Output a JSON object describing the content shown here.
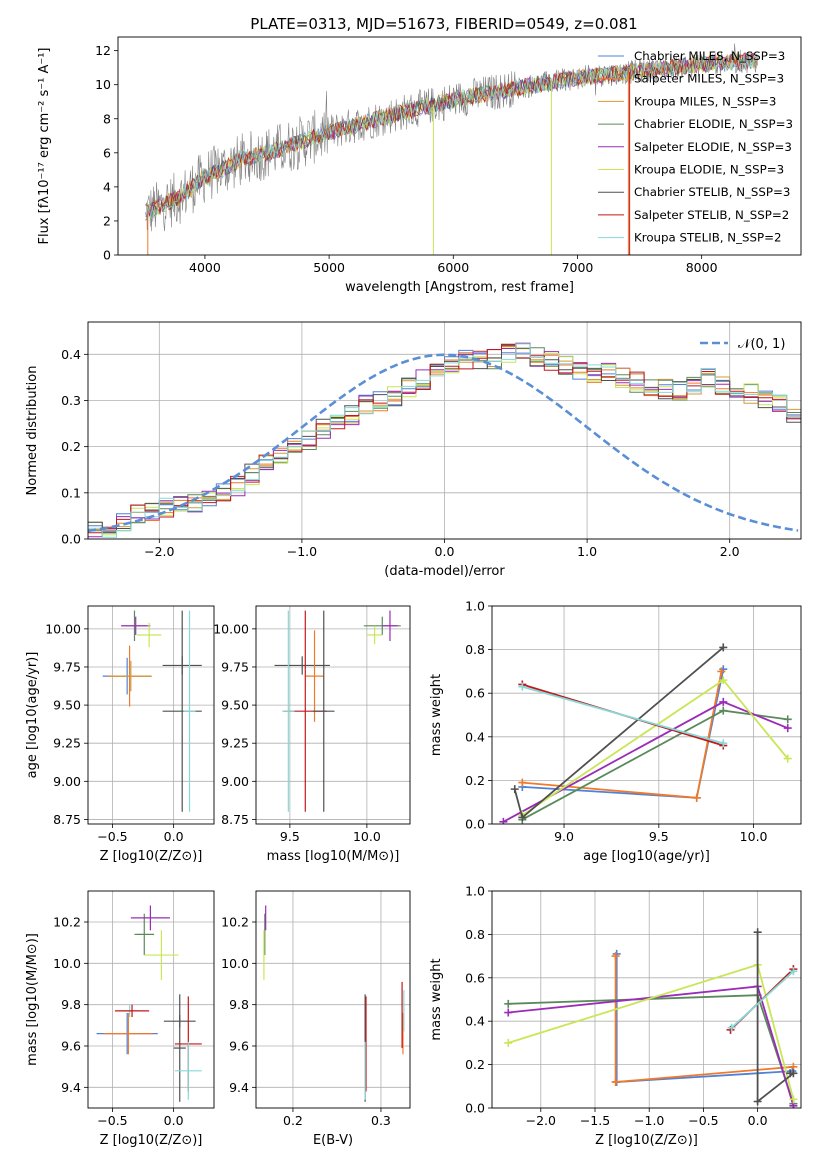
{
  "figure_title": "PLATE=0313, MJD=51673, FIBERID=0549, z=0.081",
  "colors": {
    "chabrier_miles": "#4f81d9",
    "salpeter_miles": "#f07a2a",
    "kroupa_miles": "#d39a3a",
    "chabrier_elodie": "#5a8a5a",
    "salpeter_elodie": "#9a2cb8",
    "kroupa_elodie": "#c8e656",
    "chabrier_stelib": "#505050",
    "salpeter_stelib": "#c2181a",
    "kroupa_stelib": "#86d9d9",
    "data": "#808080",
    "normal": "#5a8fd6"
  },
  "chart_data": [
    {
      "id": "spectrum",
      "type": "line",
      "title": "PLATE=0313, MJD=51673, FIBERID=0549, z=0.081",
      "xlabel": "wavelength [Angstrom, rest frame]",
      "ylabel": "Flux [fλ10⁻¹⁷ erg cm⁻² s⁻¹ A⁻¹]",
      "xlim": [
        3300,
        8800
      ],
      "ylim": [
        0,
        12.8
      ],
      "xticks": [
        4000,
        5000,
        6000,
        7000,
        8000
      ],
      "yticks": [
        0,
        2,
        4,
        6,
        8,
        10,
        12
      ],
      "grid": false,
      "legend_position": "top-right",
      "series": [
        {
          "name": "Chabrier MILES, N_SSP=3",
          "color_key": "chabrier_miles"
        },
        {
          "name": "Salpeter MILES, N_SSP=3",
          "color_key": "salpeter_miles"
        },
        {
          "name": "Kroupa MILES, N_SSP=3",
          "color_key": "kroupa_miles"
        },
        {
          "name": "Chabrier ELODIE, N_SSP=3",
          "color_key": "chabrier_elodie"
        },
        {
          "name": "Salpeter ELODIE, N_SSP=3",
          "color_key": "salpeter_elodie"
        },
        {
          "name": "Kroupa ELODIE, N_SSP=3",
          "color_key": "kroupa_elodie"
        },
        {
          "name": "Chabrier STELIB, N_SSP=3",
          "color_key": "chabrier_stelib"
        },
        {
          "name": "Salpeter STELIB, N_SSP=2",
          "color_key": "salpeter_stelib"
        },
        {
          "name": "Kroupa STELIB, N_SSP=2",
          "color_key": "kroupa_stelib"
        }
      ],
      "continuum": {
        "x": [
          3500,
          3800,
          4000,
          4300,
          4600,
          5000,
          5500,
          6000,
          6500,
          7000,
          7500,
          8000,
          8400
        ],
        "y": [
          2.4,
          3.4,
          4.6,
          5.6,
          6.2,
          7.2,
          8.2,
          9.1,
          9.8,
          10.4,
          10.8,
          11.2,
          11.4
        ]
      }
    },
    {
      "id": "residuals",
      "type": "line",
      "xlabel": "(data-model)/error",
      "ylabel": "Normed distribution",
      "xlim": [
        -2.5,
        2.5
      ],
      "ylim": [
        0,
        0.47
      ],
      "xticks": [
        -2,
        -1,
        0,
        1,
        2
      ],
      "yticks": [
        0.0,
        0.1,
        0.2,
        0.3,
        0.4
      ],
      "grid": true,
      "legend_position": "top-right",
      "legend": "𝒩(0, 1)",
      "bin_width": 0.1,
      "bin_start": -2.5,
      "mean_histogram": [
        0.02,
        0.026,
        0.04,
        0.055,
        0.06,
        0.068,
        0.074,
        0.08,
        0.088,
        0.1,
        0.115,
        0.14,
        0.16,
        0.175,
        0.2,
        0.215,
        0.24,
        0.255,
        0.27,
        0.29,
        0.3,
        0.31,
        0.33,
        0.345,
        0.36,
        0.375,
        0.39,
        0.385,
        0.39,
        0.4,
        0.405,
        0.395,
        0.385,
        0.375,
        0.36,
        0.355,
        0.36,
        0.35,
        0.34,
        0.33,
        0.325,
        0.32,
        0.33,
        0.35,
        0.33,
        0.32,
        0.315,
        0.305,
        0.29,
        0.27,
        0.245,
        0.22,
        0.2,
        0.19,
        0.175,
        0.165,
        0.15,
        0.14,
        0.125,
        0.11,
        0.1,
        0.09,
        0.08,
        0.075,
        0.07,
        0.06,
        0.055,
        0.05,
        0.045,
        0.035,
        0.03,
        0.03,
        0.025,
        0.02,
        0.02
      ]
    },
    {
      "id": "age_vs_z",
      "type": "scatter",
      "xlabel": "Z [log10(Z/Z⊙)]",
      "ylabel": "age  [log10(age/yr)]",
      "xlim": [
        -0.7,
        0.33
      ],
      "ylim": [
        8.72,
        10.15
      ],
      "xticks": [
        -0.5,
        0.0
      ],
      "yticks": [
        8.75,
        9.0,
        9.25,
        9.5,
        9.75,
        10.0
      ],
      "grid": true,
      "points": [
        {
          "color_key": "chabrier_miles",
          "x": -0.38,
          "y": 9.69,
          "xerr": 0.2,
          "yerr": 0.12
        },
        {
          "color_key": "salpeter_miles",
          "x": -0.36,
          "y": 9.69,
          "xerr": 0.18,
          "yerr": 0.2
        },
        {
          "color_key": "kroupa_miles",
          "x": -0.35,
          "y": 9.69,
          "xerr": 0.16,
          "yerr": 0.1
        },
        {
          "color_key": "chabrier_elodie",
          "x": -0.32,
          "y": 10.02,
          "xerr": 0.1,
          "yerr": 0.1
        },
        {
          "color_key": "salpeter_elodie",
          "x": -0.31,
          "y": 10.02,
          "xerr": 0.12,
          "yerr": 0.06
        },
        {
          "color_key": "kroupa_elodie",
          "x": -0.2,
          "y": 9.96,
          "xerr": 0.1,
          "yerr": 0.08
        },
        {
          "color_key": "chabrier_stelib",
          "x": 0.07,
          "y": 9.76,
          "xerr": 0.16,
          "yerr": 0.06
        },
        {
          "color_key": "chabrier_stelib",
          "x": 0.07,
          "y": 9.46,
          "xerr": 0.16,
          "yerr": 0.66
        },
        {
          "color_key": "kroupa_stelib",
          "x": 0.13,
          "y": 9.46,
          "xerr": 0.05,
          "yerr": 0.66
        }
      ]
    },
    {
      "id": "age_vs_mass",
      "type": "scatter",
      "xlabel": "mass [log10(M/M⊙)]",
      "xlim": [
        9.28,
        10.28
      ],
      "ylim": [
        8.72,
        10.15
      ],
      "xticks": [
        9.5,
        10.0
      ],
      "yticks": [
        8.75,
        9.0,
        9.25,
        9.5,
        9.75,
        10.0
      ],
      "grid": true,
      "points": [
        {
          "color_key": "chabrier_stelib",
          "x": 9.58,
          "y": 9.76,
          "xerr": 0.18,
          "yerr": 0.06
        },
        {
          "color_key": "salpeter_miles",
          "x": 9.66,
          "y": 9.69,
          "xerr": 0.06,
          "yerr": 0.3
        },
        {
          "color_key": "salpeter_stelib",
          "x": 9.6,
          "y": 9.46,
          "xerr": 0.14,
          "yerr": 0.66
        },
        {
          "color_key": "kroupa_stelib",
          "x": 9.49,
          "y": 9.46,
          "xerr": 0.04,
          "yerr": 0.66
        },
        {
          "color_key": "chabrier_stelib",
          "x": 9.72,
          "y": 9.46,
          "xerr": 0.07,
          "yerr": 0.66
        },
        {
          "color_key": "chabrier_elodie",
          "x": 10.1,
          "y": 10.02,
          "xerr": 0.12,
          "yerr": 0.06
        },
        {
          "color_key": "salpeter_elodie",
          "x": 10.15,
          "y": 10.02,
          "xerr": 0.05,
          "yerr": 0.1
        },
        {
          "color_key": "kroupa_elodie",
          "x": 10.05,
          "y": 9.96,
          "xerr": 0.05,
          "yerr": 0.06
        }
      ]
    },
    {
      "id": "weight_vs_age",
      "type": "line",
      "xlabel": "age  [log10(age/yr)]",
      "ylabel": "mass weight",
      "xlim": [
        8.62,
        10.25
      ],
      "ylim": [
        0.0,
        1.0
      ],
      "xticks": [
        9.0,
        9.5,
        10.0
      ],
      "yticks": [
        0.0,
        0.2,
        0.4,
        0.6,
        0.8,
        1.0
      ],
      "grid": true,
      "series": [
        {
          "color_key": "chabrier_miles",
          "x": [
            8.78,
            9.7,
            9.84
          ],
          "y": [
            0.17,
            0.12,
            0.71
          ]
        },
        {
          "color_key": "salpeter_miles",
          "x": [
            8.78,
            9.7,
            9.83
          ],
          "y": [
            0.19,
            0.12,
            0.7
          ]
        },
        {
          "color_key": "chabrier_elodie",
          "x": [
            8.78,
            9.84,
            10.18
          ],
          "y": [
            0.02,
            0.52,
            0.48
          ]
        },
        {
          "color_key": "salpeter_elodie",
          "x": [
            8.68,
            9.84,
            10.18
          ],
          "y": [
            0.01,
            0.56,
            0.44
          ]
        },
        {
          "color_key": "kroupa_elodie",
          "x": [
            8.78,
            9.84,
            10.18
          ],
          "y": [
            0.04,
            0.66,
            0.3
          ]
        },
        {
          "color_key": "chabrier_stelib",
          "x": [
            8.74,
            8.78,
            9.84
          ],
          "y": [
            0.16,
            0.03,
            0.81
          ]
        },
        {
          "color_key": "salpeter_stelib",
          "x": [
            8.78,
            9.84
          ],
          "y": [
            0.64,
            0.36
          ]
        },
        {
          "color_key": "kroupa_stelib",
          "x": [
            8.78,
            9.84
          ],
          "y": [
            0.63,
            0.37
          ]
        }
      ]
    },
    {
      "id": "mass_vs_z",
      "type": "scatter",
      "xlabel": "Z [log10(Z/Z⊙)]",
      "ylabel": "mass [log10(M/M⊙)]",
      "xlim": [
        -0.7,
        0.33
      ],
      "ylim": [
        9.3,
        10.35
      ],
      "xticks": [
        -0.5,
        0.0
      ],
      "yticks": [
        9.4,
        9.6,
        9.8,
        10.0,
        10.2
      ],
      "grid": true,
      "points": [
        {
          "color_key": "chabrier_miles",
          "x": -0.38,
          "y": 9.66,
          "xerr": 0.25,
          "yerr": 0.1
        },
        {
          "color_key": "salpeter_miles",
          "x": -0.37,
          "y": 9.66,
          "xerr": 0.2,
          "yerr": 0.1
        },
        {
          "color_key": "kroupa_stelib",
          "x": -0.36,
          "y": 9.77,
          "xerr": 0.08,
          "yerr": 0.03
        },
        {
          "color_key": "salpeter_stelib",
          "x": -0.34,
          "y": 9.77,
          "xerr": 0.14,
          "yerr": 0.03
        },
        {
          "color_key": "chabrier_elodie",
          "x": -0.24,
          "y": 10.14,
          "xerr": 0.08,
          "yerr": 0.1
        },
        {
          "color_key": "salpeter_elodie",
          "x": -0.19,
          "y": 10.22,
          "xerr": 0.16,
          "yerr": 0.06
        },
        {
          "color_key": "kroupa_elodie",
          "x": -0.1,
          "y": 10.04,
          "xerr": 0.14,
          "yerr": 0.12
        },
        {
          "color_key": "chabrier_stelib",
          "x": 0.05,
          "y": 9.72,
          "xerr": 0.13,
          "yerr": 0.03
        },
        {
          "color_key": "chabrier_stelib",
          "x": 0.05,
          "y": 9.59,
          "xerr": 0.05,
          "yerr": 0.26
        },
        {
          "color_key": "salpeter_stelib",
          "x": 0.12,
          "y": 9.61,
          "xerr": 0.11,
          "yerr": 0.23
        },
        {
          "color_key": "kroupa_stelib",
          "x": 0.12,
          "y": 9.48,
          "xerr": 0.11,
          "yerr": 0.14
        }
      ]
    },
    {
      "id": "mass_vs_ebv",
      "type": "scatter",
      "xlabel": "E(B-V)",
      "xlim": [
        0.158,
        0.333
      ],
      "ylim": [
        9.3,
        10.35
      ],
      "xticks": [
        0.2,
        0.3
      ],
      "yticks": [
        9.4,
        9.6,
        9.8,
        10.0,
        10.2
      ],
      "grid": true,
      "points": [
        {
          "color_key": "chabrier_elodie",
          "x": 0.168,
          "y": 10.14,
          "yerr": 0.1
        },
        {
          "color_key": "salpeter_elodie",
          "x": 0.169,
          "y": 10.22,
          "yerr": 0.06
        },
        {
          "color_key": "kroupa_elodie",
          "x": 0.167,
          "y": 10.04,
          "yerr": 0.12
        },
        {
          "color_key": "chabrier_stelib",
          "x": 0.282,
          "y": 9.59,
          "yerr": 0.26
        },
        {
          "color_key": "salpeter_stelib",
          "x": 0.283,
          "y": 9.61,
          "yerr": 0.23
        },
        {
          "color_key": "kroupa_stelib",
          "x": 0.282,
          "y": 9.48,
          "yerr": 0.14
        },
        {
          "color_key": "salpeter_miles",
          "x": 0.325,
          "y": 9.66,
          "yerr": 0.1
        },
        {
          "color_key": "kroupa_stelib",
          "x": 0.326,
          "y": 9.77,
          "yerr": 0.1
        },
        {
          "color_key": "salpeter_stelib",
          "x": 0.324,
          "y": 9.75,
          "yerr": 0.16
        }
      ]
    },
    {
      "id": "weight_vs_z",
      "type": "line",
      "xlabel": "Z [log10(Z/Z⊙)]",
      "ylabel": "mass weight",
      "xlim": [
        -2.45,
        0.4
      ],
      "ylim": [
        0.0,
        1.0
      ],
      "xticks": [
        -2.0,
        -1.5,
        -1.0,
        -0.5,
        0.0
      ],
      "yticks": [
        0.0,
        0.2,
        0.4,
        0.6,
        0.8,
        1.0
      ],
      "grid": true,
      "series": [
        {
          "color_key": "chabrier_miles",
          "x": [
            -1.3,
            -1.3,
            0.32
          ],
          "y": [
            0.71,
            0.12,
            0.17
          ]
        },
        {
          "color_key": "salpeter_miles",
          "x": [
            -1.31,
            -1.31,
            0.33
          ],
          "y": [
            0.7,
            0.12,
            0.19
          ]
        },
        {
          "color_key": "chabrier_elodie",
          "x": [
            -2.3,
            0.0,
            0.33
          ],
          "y": [
            0.48,
            0.52,
            0.02
          ]
        },
        {
          "color_key": "salpeter_elodie",
          "x": [
            -2.3,
            0.0,
            0.33
          ],
          "y": [
            0.44,
            0.56,
            0.01
          ]
        },
        {
          "color_key": "kroupa_elodie",
          "x": [
            -2.3,
            0.0,
            0.33
          ],
          "y": [
            0.3,
            0.66,
            0.04
          ]
        },
        {
          "color_key": "chabrier_stelib",
          "x": [
            0.0,
            0.0,
            0.33,
            0.3
          ],
          "y": [
            0.81,
            0.03,
            0.16,
            0.16
          ]
        },
        {
          "color_key": "salpeter_stelib",
          "x": [
            -0.25,
            0.33
          ],
          "y": [
            0.36,
            0.64
          ]
        },
        {
          "color_key": "kroupa_stelib",
          "x": [
            -0.24,
            0.33
          ],
          "y": [
            0.37,
            0.63
          ]
        }
      ]
    }
  ]
}
